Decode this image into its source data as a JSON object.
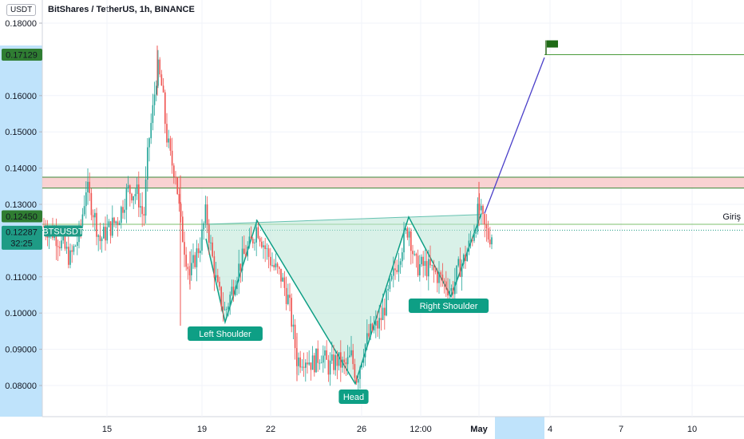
{
  "header": {
    "currency": "USDT",
    "title": "BitShares / TetherUS, 1h, BINANCE"
  },
  "colors": {
    "up": "#26a69a",
    "down": "#ef5350",
    "pattern": "#0e9f85",
    "pattern_fill": "#b9e6d6",
    "zone_fill": "#f7c7c7",
    "zone_line": "#3a8a3a",
    "target_line": "#4a9a3a",
    "projection": "#4a3fc9",
    "axis_highlight": "#bfe3fb",
    "price_badge": "#1e9b85",
    "level_badge": "#2f7d32"
  },
  "chart_data": {
    "type": "candlestick",
    "y_ticks": [
      "0.18000",
      "0.16000",
      "0.15000",
      "0.14000",
      "0.13000",
      "0.11000",
      "0.10000",
      "0.09000",
      "0.08000"
    ],
    "x_ticks": [
      "15",
      "19",
      "22",
      "26",
      "12:00",
      "May",
      "4",
      "7",
      "10"
    ],
    "ylim": [
      0.074,
      0.182
    ],
    "resistance_zone": [
      0.1345,
      0.1375
    ],
    "entry_level": 0.1245,
    "target_level": 0.17129,
    "current_price": 0.12287,
    "countdown": "32:25",
    "symbol": "BTSUSDT",
    "badges": {
      "target": "0.17129",
      "entry": "0.12450",
      "current": "0.12287"
    },
    "entry_label": "Giriş",
    "pattern_labels": [
      "Left Shoulder",
      "Head",
      "Right Shoulder"
    ],
    "pattern_points": [
      {
        "x": 258,
        "y": 0.1205
      },
      {
        "x": 282,
        "y": 0.0975
      },
      {
        "x": 322,
        "y": 0.1255
      },
      {
        "x": 445,
        "y": 0.0805
      },
      {
        "x": 512,
        "y": 0.1265
      },
      {
        "x": 565,
        "y": 0.1045
      },
      {
        "x": 603,
        "y": 0.1275
      }
    ],
    "neckline": [
      {
        "x": 258,
        "y": 0.1245
      },
      {
        "x": 603,
        "y": 0.1272
      }
    ],
    "projection": [
      {
        "x": 607,
        "y": 0.1275
      },
      {
        "x": 682,
        "y": 0.1705
      }
    ],
    "anchors": [
      {
        "x": 55,
        "y": 0.124
      },
      {
        "x": 68,
        "y": 0.122
      },
      {
        "x": 80,
        "y": 0.118
      },
      {
        "x": 88,
        "y": 0.115
      },
      {
        "x": 100,
        "y": 0.122
      },
      {
        "x": 108,
        "y": 0.135
      },
      {
        "x": 118,
        "y": 0.127
      },
      {
        "x": 125,
        "y": 0.12
      },
      {
        "x": 135,
        "y": 0.123
      },
      {
        "x": 148,
        "y": 0.126
      },
      {
        "x": 160,
        "y": 0.134
      },
      {
        "x": 172,
        "y": 0.133
      },
      {
        "x": 180,
        "y": 0.126
      },
      {
        "x": 186,
        "y": 0.147
      },
      {
        "x": 191,
        "y": 0.155
      },
      {
        "x": 197,
        "y": 0.168
      },
      {
        "x": 203,
        "y": 0.162
      },
      {
        "x": 208,
        "y": 0.15
      },
      {
        "x": 214,
        "y": 0.142
      },
      {
        "x": 220,
        "y": 0.139
      },
      {
        "x": 226,
        "y": 0.125
      },
      {
        "x": 232,
        "y": 0.117
      },
      {
        "x": 238,
        "y": 0.11
      },
      {
        "x": 244,
        "y": 0.115
      },
      {
        "x": 252,
        "y": 0.12
      },
      {
        "x": 258,
        "y": 0.128
      },
      {
        "x": 264,
        "y": 0.118
      },
      {
        "x": 272,
        "y": 0.107
      },
      {
        "x": 282,
        "y": 0.1
      },
      {
        "x": 290,
        "y": 0.106
      },
      {
        "x": 298,
        "y": 0.112
      },
      {
        "x": 306,
        "y": 0.116
      },
      {
        "x": 314,
        "y": 0.119
      },
      {
        "x": 322,
        "y": 0.124
      },
      {
        "x": 332,
        "y": 0.118
      },
      {
        "x": 342,
        "y": 0.113
      },
      {
        "x": 352,
        "y": 0.11
      },
      {
        "x": 362,
        "y": 0.103
      },
      {
        "x": 372,
        "y": 0.087
      },
      {
        "x": 382,
        "y": 0.088
      },
      {
        "x": 392,
        "y": 0.086
      },
      {
        "x": 402,
        "y": 0.089
      },
      {
        "x": 412,
        "y": 0.085
      },
      {
        "x": 422,
        "y": 0.087
      },
      {
        "x": 432,
        "y": 0.085
      },
      {
        "x": 440,
        "y": 0.088
      },
      {
        "x": 447,
        "y": 0.082
      },
      {
        "x": 455,
        "y": 0.09
      },
      {
        "x": 465,
        "y": 0.095
      },
      {
        "x": 475,
        "y": 0.097
      },
      {
        "x": 485,
        "y": 0.104
      },
      {
        "x": 495,
        "y": 0.112
      },
      {
        "x": 505,
        "y": 0.12
      },
      {
        "x": 512,
        "y": 0.124
      },
      {
        "x": 520,
        "y": 0.113
      },
      {
        "x": 530,
        "y": 0.113
      },
      {
        "x": 540,
        "y": 0.112
      },
      {
        "x": 550,
        "y": 0.11
      },
      {
        "x": 558,
        "y": 0.108
      },
      {
        "x": 566,
        "y": 0.106
      },
      {
        "x": 574,
        "y": 0.112
      },
      {
        "x": 582,
        "y": 0.115
      },
      {
        "x": 590,
        "y": 0.12
      },
      {
        "x": 596,
        "y": 0.125
      },
      {
        "x": 600,
        "y": 0.129
      },
      {
        "x": 606,
        "y": 0.124
      },
      {
        "x": 612,
        "y": 0.121
      },
      {
        "x": 617,
        "y": 0.122
      }
    ]
  }
}
